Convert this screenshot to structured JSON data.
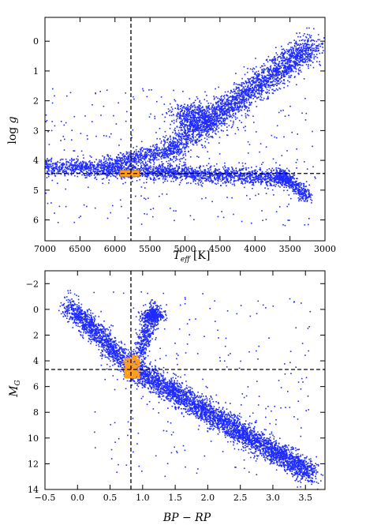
{
  "chart_data": [
    {
      "type": "scatter",
      "title": "",
      "xlabel": "T_eff [K]",
      "ylabel": "log g",
      "xlim": [
        7000,
        3000
      ],
      "ylim": [
        6.7,
        -0.8
      ],
      "x_inverted": true,
      "y_inverted": true,
      "x_ticks": [
        7000,
        6500,
        6000,
        5500,
        5000,
        4500,
        4000,
        3500,
        3000
      ],
      "y_ticks": [
        0,
        1,
        2,
        3,
        4,
        5,
        6
      ],
      "grid": false,
      "colors": {
        "points": "#1e2bff",
        "highlight": "#ff9d1a",
        "ref_lines": "#000000"
      },
      "series": [
        {
          "color": "#1e2bff",
          "structure": [
            {
              "region": "main sequence band",
              "x": [
                7000,
                3500
              ],
              "y": [
                4.2,
                4.6
              ]
            },
            {
              "region": "subgiant/red giant branch",
              "x": [
                5500,
                3100
              ],
              "y": [
                4.0,
                0.0
              ]
            },
            {
              "region": "red clump",
              "x": [
                5100,
                4600
              ],
              "y": [
                2.3,
                2.7
              ]
            },
            {
              "region": "M-dwarf plume",
              "x": [
                3700,
                3200
              ],
              "y": [
                4.3,
                5.3
              ]
            }
          ]
        }
      ],
      "reference_lines": {
        "vertical_x": 5772,
        "horizontal_y": 4.44
      },
      "highlight_box": {
        "x": [
          5930,
          5650
        ],
        "y": [
          4.33,
          4.55
        ],
        "color": "#ff9d1a"
      }
    },
    {
      "type": "scatter",
      "title": "",
      "xlabel": "BP − RP",
      "ylabel": "M_G",
      "xlim": [
        -0.5,
        3.8
      ],
      "ylim": [
        14,
        -3
      ],
      "y_inverted": true,
      "x_ticks": [
        -0.5,
        0.0,
        0.5,
        1.0,
        1.5,
        2.0,
        2.5,
        3.0,
        3.5
      ],
      "y_ticks": [
        -2,
        0,
        2,
        4,
        6,
        8,
        10,
        12,
        14
      ],
      "grid": false,
      "colors": {
        "points": "#1e2bff",
        "highlight": "#ff9d1a",
        "ref_lines": "#000000"
      },
      "series": [
        {
          "color": "#1e2bff",
          "structure": [
            {
              "region": "upper main sequence",
              "x": [
                -0.2,
                0.8
              ],
              "y": [
                -0.5,
                4.5
              ]
            },
            {
              "region": "lower main sequence",
              "x": [
                0.8,
                3.6
              ],
              "y": [
                4.5,
                12.8
              ]
            },
            {
              "region": "giant branch",
              "x": [
                0.9,
                1.25
              ],
              "y": [
                3.5,
                -0.5
              ]
            },
            {
              "region": "red clump",
              "x": [
                1.0,
                1.3
              ],
              "y": [
                0.2,
                0.8
              ]
            }
          ]
        }
      ],
      "reference_lines": {
        "vertical_x": 0.82,
        "horizontal_y": 4.67
      },
      "highlight_region": {
        "x": [
          0.72,
          0.95
        ],
        "y": [
          3.6,
          5.3
        ],
        "color": "#ff9d1a"
      }
    }
  ],
  "ticks": {
    "top_x": [
      "7000",
      "6500",
      "6000",
      "5500",
      "5000",
      "4500",
      "4000",
      "3500",
      "3000"
    ],
    "top_y": [
      "0",
      "1",
      "2",
      "3",
      "4",
      "5",
      "6"
    ],
    "bottom_x": [
      "−0.5",
      "0.0",
      "0.5",
      "1.0",
      "1.5",
      "2.0",
      "2.5",
      "3.0",
      "3.5"
    ],
    "bottom_y": [
      "−2",
      "0",
      "2",
      "4",
      "6",
      "8",
      "10",
      "12",
      "14"
    ]
  }
}
